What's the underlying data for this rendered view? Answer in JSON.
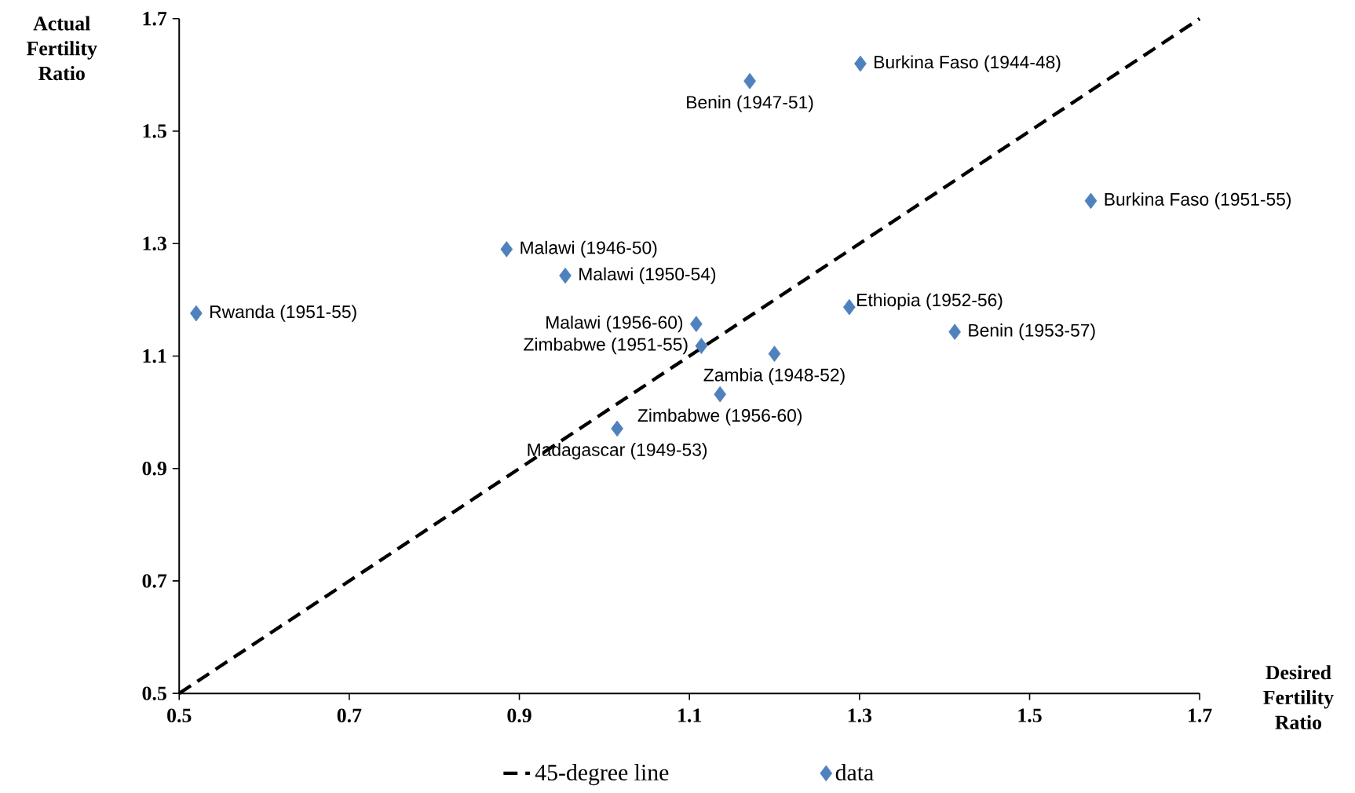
{
  "chart_data": {
    "type": "scatter",
    "xlabel": "Desired Fertility Ratio",
    "ylabel": "Actual Fertility Ratio",
    "xlim": [
      0.5,
      1.7
    ],
    "ylim": [
      0.5,
      1.7
    ],
    "xticks": [
      0.5,
      0.7,
      0.9,
      1.1,
      1.3,
      1.5,
      1.7
    ],
    "yticks": [
      0.5,
      0.7,
      0.9,
      1.1,
      1.3,
      1.5,
      1.7
    ],
    "legend": "bottom",
    "series": [
      {
        "name": "45-degree line",
        "type": "line",
        "color": "#000000",
        "line_style": "dashed",
        "marker": "none",
        "x": [
          0.5,
          1.7
        ],
        "values": [
          0.5,
          1.7
        ]
      },
      {
        "name": "data",
        "color": "#4f81bd",
        "marker": "diamond",
        "x": [
          0.52,
          0.885,
          0.954,
          1.108,
          1.114,
          1.136,
          1.015,
          1.2,
          1.288,
          1.412,
          1.572,
          1.171,
          1.301
        ],
        "values": [
          1.176,
          1.29,
          1.243,
          1.157,
          1.118,
          1.032,
          0.971,
          1.104,
          1.187,
          1.143,
          1.376,
          1.589,
          1.62
        ]
      }
    ],
    "annotations": [
      {
        "text": "Rwanda (1951-55)",
        "x": 0.52,
        "y": 1.176
      },
      {
        "text": "Malawi (1946-50)",
        "x": 0.885,
        "y": 1.29
      },
      {
        "text": "Malawi (1950-54)",
        "x": 0.954,
        "y": 1.243
      },
      {
        "text": "Malawi (1956-60)",
        "x": 1.108,
        "y": 1.157
      },
      {
        "text": "Zimbabwe (1951-55)",
        "x": 1.114,
        "y": 1.118
      },
      {
        "text": "Zimbabwe (1956-60)",
        "x": 1.136,
        "y": 1.032
      },
      {
        "text": "Madagascar (1949-53)",
        "x": 1.015,
        "y": 0.971
      },
      {
        "text": "Zambia (1948-52)",
        "x": 1.2,
        "y": 1.104
      },
      {
        "text": "Ethiopia (1952-56)",
        "x": 1.288,
        "y": 1.187
      },
      {
        "text": "Benin (1953-57)",
        "x": 1.412,
        "y": 1.143
      },
      {
        "text": "Burkina Faso (1951-55)",
        "x": 1.572,
        "y": 1.376
      },
      {
        "text": "Benin (1947-51)",
        "x": 1.171,
        "y": 1.589
      },
      {
        "text": "Burkina Faso (1944-48)",
        "x": 1.301,
        "y": 1.62
      }
    ]
  }
}
